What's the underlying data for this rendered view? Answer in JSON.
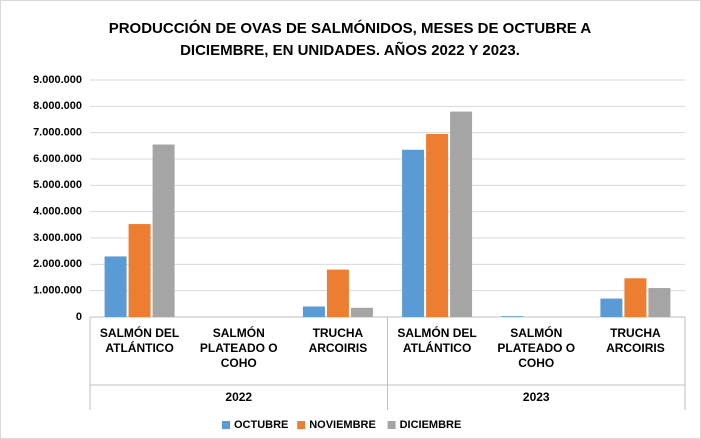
{
  "chart_data": {
    "type": "bar",
    "title": "PRODUCCIÓN DE OVAS DE SALMÓNIDOS, MESES DE OCTUBRE A DICIEMBRE, EN UNIDADES. AÑOS 2022 Y 2023.",
    "groups": [
      "2022",
      "2023"
    ],
    "categories": [
      "SALMÓN DEL ATLÁNTICO",
      "SALMÓN PLATEADO O COHO",
      "TRUCHA ARCOIRIS",
      "SALMÓN DEL ATLÁNTICO",
      "SALMÓN PLATEADO O COHO",
      "TRUCHA ARCOIRIS"
    ],
    "series": [
      {
        "name": "OCTUBRE",
        "color": "#5b9bd5",
        "values": [
          2300000,
          0,
          400000,
          6350000,
          30000,
          700000
        ]
      },
      {
        "name": "NOVIEMBRE",
        "color": "#ed7d31",
        "values": [
          3530000,
          0,
          1800000,
          6950000,
          0,
          1470000
        ]
      },
      {
        "name": "DICIEMBRE",
        "color": "#a5a5a5",
        "values": [
          6550000,
          0,
          350000,
          7800000,
          0,
          1100000
        ]
      }
    ],
    "ylim": [
      0,
      9000000
    ],
    "yticks": [
      0,
      {
        "value": 1000000,
        "label": "1.000.000"
      },
      {
        "value": 2000000,
        "label": "2.000.000"
      },
      {
        "value": 3000000,
        "label": "3.000.000"
      },
      {
        "value": 4000000,
        "label": "4.000.000"
      },
      {
        "value": 5000000,
        "label": "5.000.000"
      },
      {
        "value": 6000000,
        "label": "6.000.000"
      },
      {
        "value": 7000000,
        "label": "7.000.000"
      },
      {
        "value": 8000000,
        "label": "8.000.000"
      },
      {
        "value": 9000000,
        "label": "9.000.000"
      }
    ],
    "grid": true,
    "legend": "bottom"
  }
}
